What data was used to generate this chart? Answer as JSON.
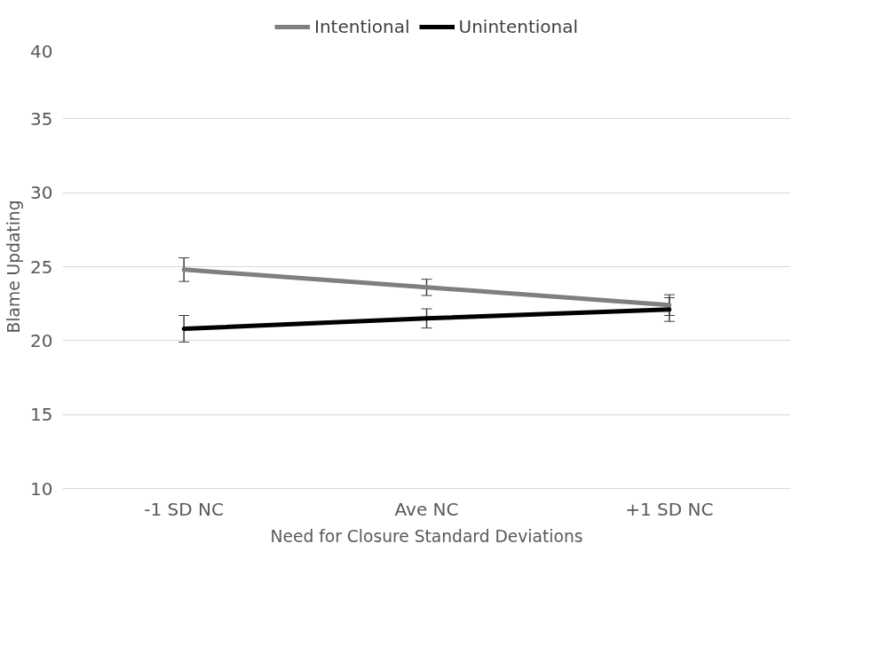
{
  "chart_data": {
    "type": "line",
    "xlabel": "Need for Closure Standard Deviations",
    "ylabel": "Blame Updating",
    "categories": [
      "-1 SD NC",
      "Ave NC",
      "+1 SD NC"
    ],
    "series": [
      {
        "name": "Intentional",
        "color": "#7f7f7f",
        "values": [
          24.8,
          23.6,
          22.4
        ],
        "errors": [
          0.8,
          0.55,
          0.7
        ]
      },
      {
        "name": "Unintentional",
        "color": "#000000",
        "values": [
          20.8,
          21.5,
          22.1
        ],
        "errors": [
          0.9,
          0.65,
          0.8
        ]
      }
    ],
    "ylim": [
      10,
      40
    ],
    "yticks": [
      10,
      15,
      20,
      25,
      30,
      35,
      40
    ],
    "grid": "y",
    "legend": "top",
    "marker": "none",
    "line_style": "solid"
  }
}
